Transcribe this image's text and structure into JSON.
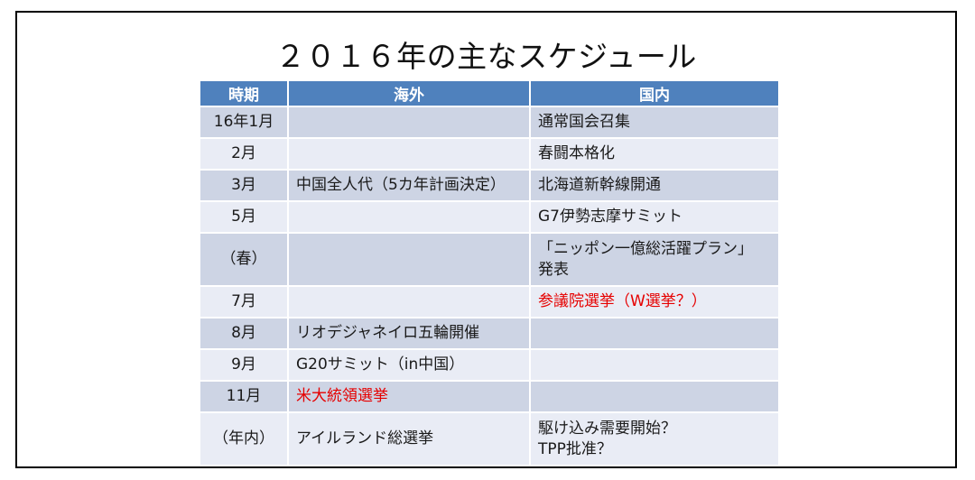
{
  "slide": {
    "title": "２０１６年の主なスケジュール"
  },
  "colors": {
    "header_bg": "#4f81bd",
    "header_text": "#ffffff",
    "band_dark": "#cdd4e4",
    "band_light": "#e9ecf5",
    "highlight_red": "#e60000",
    "body_text": "#1a1a1a",
    "frame_border": "#000000"
  },
  "table": {
    "headers": {
      "period": "時期",
      "overseas": "海外",
      "domestic": "国内"
    },
    "rows": [
      {
        "period": "16年1月",
        "overseas": "",
        "domestic": "通常国会召集"
      },
      {
        "period": "2月",
        "overseas": "",
        "domestic": "春闘本格化"
      },
      {
        "period": "3月",
        "overseas": "中国全人代（5カ年計画決定）",
        "domestic": "北海道新幹線開通"
      },
      {
        "period": "5月",
        "overseas": "",
        "domestic": "G7伊勢志摩サミット"
      },
      {
        "period": "（春）",
        "overseas": "",
        "domestic": "「ニッポン一億総活躍プラン」\n発表"
      },
      {
        "period": "7月",
        "overseas": "",
        "domestic": "参議院選挙（W選挙？）"
      },
      {
        "period": "8月",
        "overseas": "リオデジャネイロ五輪開催",
        "domestic": ""
      },
      {
        "period": "9月",
        "overseas": "G20サミット（in中国）",
        "domestic": ""
      },
      {
        "period": "11月",
        "overseas": "米大統領選挙",
        "domestic": ""
      },
      {
        "period": "（年内）",
        "overseas": "アイルランド総選挙",
        "domestic": "駆け込み需要開始？\nTPP批准？"
      }
    ]
  }
}
